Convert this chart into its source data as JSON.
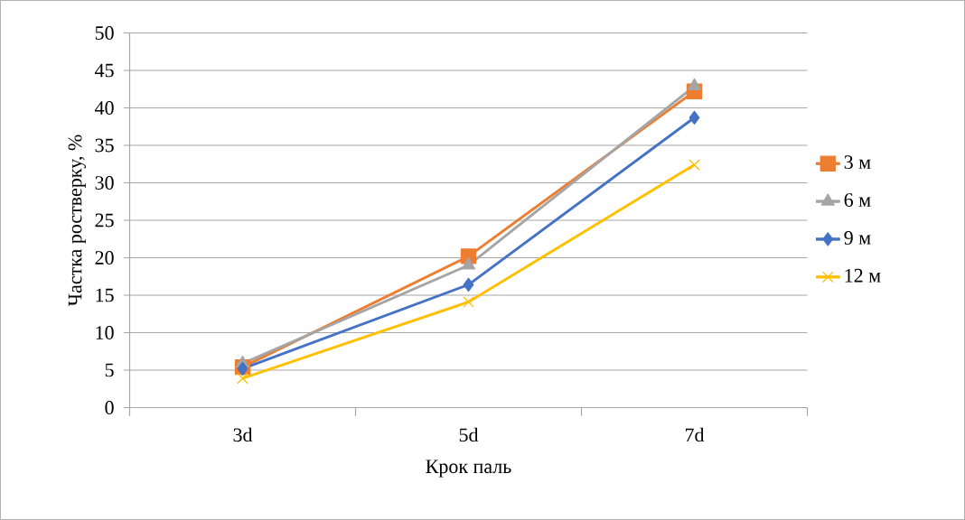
{
  "chart_data": {
    "type": "line",
    "xlabel": "Крок паль",
    "ylabel": "Частка ростверку, %",
    "categories": [
      "3d",
      "5d",
      "7d"
    ],
    "ylim": [
      0,
      50
    ],
    "yticks": [
      0,
      5,
      10,
      15,
      20,
      25,
      30,
      35,
      40,
      45,
      50
    ],
    "grid": "y",
    "legend": "right",
    "line_style": "solid",
    "series": [
      {
        "name": "3 м",
        "color": "#ed7d31",
        "marker": "square",
        "values": [
          5.4,
          20.2,
          42.2
        ]
      },
      {
        "name": "6 м",
        "color": "#a5a5a5",
        "marker": "triangle",
        "values": [
          5.9,
          19.0,
          42.9
        ]
      },
      {
        "name": "9 м",
        "color": "#4472c4",
        "marker": "diamond",
        "values": [
          5.2,
          16.4,
          38.7
        ]
      },
      {
        "name": "12 м",
        "color": "#ffc000",
        "marker": "cross",
        "values": [
          3.9,
          14.1,
          32.4
        ]
      }
    ]
  }
}
